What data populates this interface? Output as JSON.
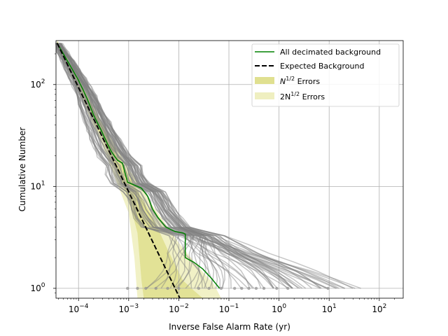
{
  "chart_data": {
    "type": "line",
    "xlabel": "Inverse False Alarm Rate (yr)",
    "ylabel": "Cumulative Number",
    "xscale": "log",
    "yscale": "log",
    "xlim": [
      3.55e-05,
      300
    ],
    "ylim": [
      0.8,
      270
    ],
    "grid": true,
    "legend_placement": "top-right",
    "x_ticks": [
      {
        "value": 0.0001,
        "base": "10",
        "exp": "−4"
      },
      {
        "value": 0.001,
        "base": "10",
        "exp": "−3"
      },
      {
        "value": 0.01,
        "base": "10",
        "exp": "−2"
      },
      {
        "value": 0.1,
        "base": "10",
        "exp": "−1"
      },
      {
        "value": 1,
        "base": "10",
        "exp": "0"
      },
      {
        "value": 10,
        "base": "10",
        "exp": "1"
      },
      {
        "value": 100,
        "base": "10",
        "exp": "2"
      }
    ],
    "y_ticks": [
      {
        "value": 1,
        "base": "10",
        "exp": "0"
      },
      {
        "value": 10,
        "base": "10",
        "exp": "1"
      },
      {
        "value": 100,
        "base": "10",
        "exp": "2"
      }
    ],
    "legend": [
      {
        "label": "All decimated background",
        "style": "solid",
        "color": "#008000"
      },
      {
        "label": "Expected Background",
        "style": "dashed",
        "color": "#000000"
      },
      {
        "label_base": "N",
        "label_sup": "1/2",
        "label_rest": " Errors",
        "style": "patch",
        "color": "#e0e090"
      },
      {
        "label_base": "2N",
        "label_sup": "1/2",
        "label_rest": " Errors",
        "style": "patch",
        "color": "#efefc0"
      }
    ],
    "series": [
      {
        "name": "All decimated background",
        "color": "#008000",
        "points": [
          [
            3.75e-05,
            255
          ],
          [
            7e-05,
            150
          ],
          [
            0.0001,
            110
          ],
          [
            0.00015,
            72
          ],
          [
            0.0002,
            50
          ],
          [
            0.00028,
            36
          ],
          [
            0.00038,
            26
          ],
          [
            0.00045,
            22
          ],
          [
            0.0006,
            18
          ],
          [
            0.00075,
            17
          ],
          [
            0.00095,
            11
          ],
          [
            0.0012,
            10.5
          ],
          [
            0.0018,
            9.6
          ],
          [
            0.0024,
            8
          ],
          [
            0.003,
            6
          ],
          [
            0.0038,
            5
          ],
          [
            0.0045,
            4.5
          ],
          [
            0.0055,
            4
          ],
          [
            0.0085,
            3.6
          ],
          [
            0.012,
            3.5
          ],
          [
            0.0135,
            3.4
          ],
          [
            0.0135,
            2
          ],
          [
            0.02,
            1.8
          ],
          [
            0.03,
            1.55
          ],
          [
            0.045,
            1.25
          ],
          [
            0.065,
            1
          ]
        ]
      },
      {
        "name": "Expected Background",
        "color": "#000000",
        "points": [
          [
            3.75e-05,
            255
          ],
          [
            0.0105,
            0.8
          ]
        ]
      }
    ],
    "error_bands": [
      {
        "name": "N^1/2 Errors",
        "color": "#e0e090",
        "upper": [
          [
            3.75e-05,
            270
          ],
          [
            0.0001,
            112
          ],
          [
            0.0003,
            39
          ],
          [
            0.001,
            13
          ],
          [
            0.003,
            5
          ],
          [
            0.006,
            2.4
          ],
          [
            0.012,
            1.2
          ],
          [
            0.02,
            0.95
          ],
          [
            0.03,
            0.8
          ]
        ],
        "lower": [
          [
            3.75e-05,
            245
          ],
          [
            0.0001,
            92
          ],
          [
            0.0003,
            29
          ],
          [
            0.001,
            7.5
          ],
          [
            0.0015,
            3.5
          ],
          [
            0.0018,
            1.2
          ],
          [
            0.002,
            0.8
          ]
        ]
      },
      {
        "name": "2N^1/2 Errors",
        "color": "#efefc0",
        "upper": [
          [
            3.75e-05,
            270
          ],
          [
            0.0001,
            118
          ],
          [
            0.0003,
            42
          ],
          [
            0.001,
            15
          ],
          [
            0.003,
            6.5
          ],
          [
            0.01,
            2.8
          ],
          [
            0.025,
            1.6
          ],
          [
            0.05,
            1.1
          ],
          [
            0.07,
            0.8
          ]
        ],
        "lower": [
          [
            3.75e-05,
            235
          ],
          [
            0.0001,
            85
          ],
          [
            0.0003,
            25
          ],
          [
            0.001,
            5.5
          ],
          [
            0.0013,
            2
          ],
          [
            0.0015,
            0.8
          ]
        ]
      }
    ],
    "endpoint_dots": [
      0.00095,
      0.0015,
      0.0022,
      0.0035,
      0.006,
      0.01,
      0.025,
      0.04,
      0.07,
      0.13,
      0.18,
      0.25,
      0.35,
      0.5,
      0.9,
      1.5,
      9.5
    ]
  }
}
